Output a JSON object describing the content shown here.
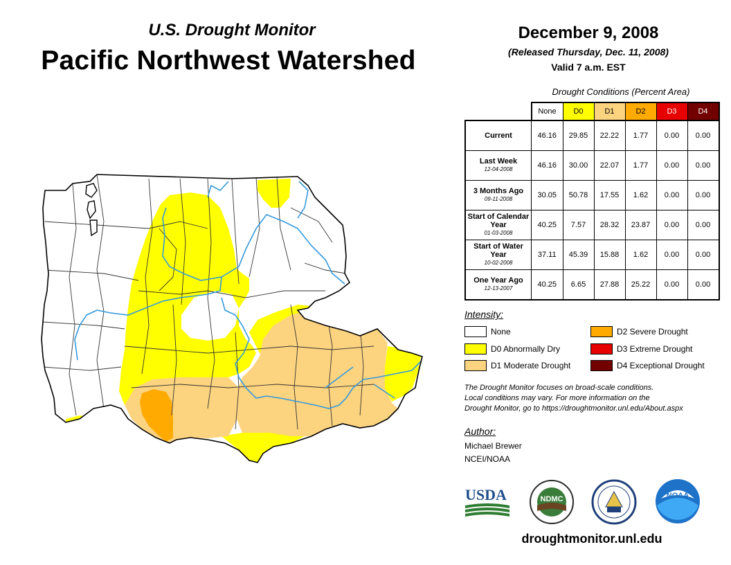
{
  "header": {
    "subtitle": "U.S. Drought Monitor",
    "title": "Pacific Northwest Watershed",
    "date": "December 9, 2008",
    "released": "(Released Thursday, Dec. 11, 2008)",
    "valid": "Valid 7 a.m. EST"
  },
  "table": {
    "caption": "Drought Conditions (Percent Area)",
    "columns": [
      "None",
      "D0",
      "D1",
      "D2",
      "D3",
      "D4"
    ],
    "column_colors": [
      "#ffffff",
      "#ffff00",
      "#fcd37f",
      "#ffaa00",
      "#e60000",
      "#730000"
    ],
    "column_text_colors": [
      "#000000",
      "#000000",
      "#000000",
      "#000000",
      "#ffffff",
      "#ffffff"
    ],
    "rows": [
      {
        "label": "Current",
        "sub": "",
        "values": [
          "46.16",
          "29.85",
          "22.22",
          "1.77",
          "0.00",
          "0.00"
        ]
      },
      {
        "label": "Last Week",
        "sub": "12-04-2008",
        "values": [
          "46.16",
          "30.00",
          "22.07",
          "1.77",
          "0.00",
          "0.00"
        ]
      },
      {
        "label": "3 Months Ago",
        "sub": "09-11-2008",
        "values": [
          "30.05",
          "50.78",
          "17.55",
          "1.62",
          "0.00",
          "0.00"
        ]
      },
      {
        "label": "Start of Calendar Year",
        "sub": "01-03-2008",
        "values": [
          "40.25",
          "7.57",
          "28.32",
          "23.87",
          "0.00",
          "0.00"
        ]
      },
      {
        "label": "Start of Water Year",
        "sub": "10-02-2008",
        "values": [
          "37.11",
          "45.39",
          "15.88",
          "1.62",
          "0.00",
          "0.00"
        ]
      },
      {
        "label": "One Year Ago",
        "sub": "12-13-2007",
        "values": [
          "40.25",
          "6.65",
          "27.88",
          "25.22",
          "0.00",
          "0.00"
        ]
      }
    ]
  },
  "legend": {
    "title": "Intensity:",
    "items": [
      {
        "label": "None",
        "color": "#ffffff"
      },
      {
        "label": "D0 Abnormally Dry",
        "color": "#ffff00"
      },
      {
        "label": "D1 Moderate Drought",
        "color": "#fcd37f"
      },
      {
        "label": "D2 Severe Drought",
        "color": "#ffaa00"
      },
      {
        "label": "D3 Extreme Drought",
        "color": "#e60000"
      },
      {
        "label": "D4 Exceptional Drought",
        "color": "#730000"
      }
    ]
  },
  "note": {
    "line1": "The Drought Monitor focuses on broad-scale conditions.",
    "line2": "Local conditions may vary. For more information on the",
    "line3": "Drought Monitor, go to https://droughtmonitor.unl.edu/About.aspx"
  },
  "author": {
    "title": "Author:",
    "name": "Michael Brewer",
    "org": "NCEI/NOAA"
  },
  "logos": {
    "usda": "USDA",
    "ndmc": "NDMC",
    "noaa": "NOAA"
  },
  "footer": {
    "url": "droughtmonitor.unl.edu"
  },
  "colors": {
    "river": "#3399dd",
    "border": "#333333"
  }
}
